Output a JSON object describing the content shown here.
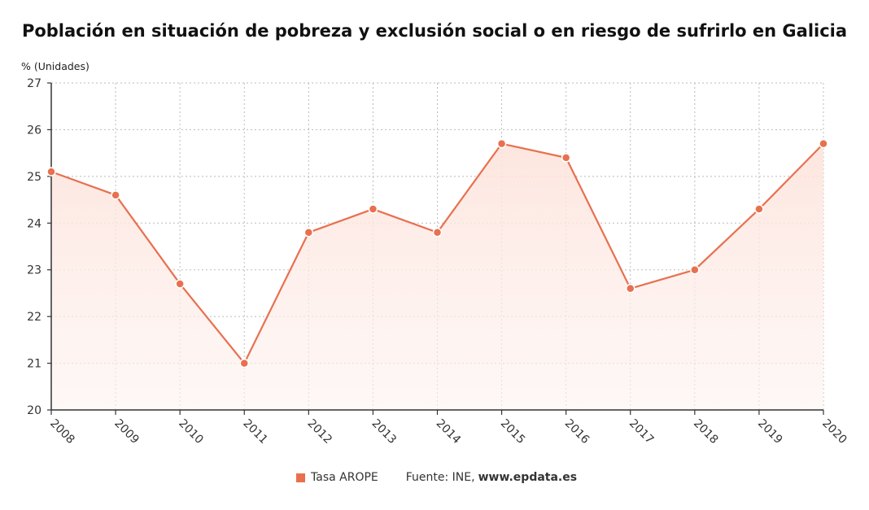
{
  "title": "Población en situación de pobreza y exclusión social o en riesgo de sufrirlo en Galicia",
  "unit_label": "% (Unidades)",
  "source": {
    "prefix": "Fuente: INE,",
    "domain": "www.epdata.es"
  },
  "colors": {
    "series": "#e8704f",
    "fill": "#fdeeea",
    "grid": "#bbbbbb"
  },
  "chart_data": {
    "type": "line",
    "title": "Población en situación de pobreza y exclusión social o en riesgo de sufrirlo en Galicia",
    "ylabel": "% (Unidades)",
    "xlabel": "",
    "x": [
      "2008",
      "2009",
      "2010",
      "2011",
      "2012",
      "2013",
      "2014",
      "2015",
      "2016",
      "2017",
      "2018",
      "2019",
      "2020"
    ],
    "series": [
      {
        "name": "Tasa AROPE",
        "values": [
          25.1,
          24.6,
          22.7,
          21.0,
          23.8,
          24.3,
          23.8,
          25.7,
          25.4,
          22.6,
          23.0,
          24.3,
          25.7
        ]
      }
    ],
    "ylim": [
      20,
      27
    ],
    "yticks": [
      20,
      21,
      22,
      23,
      24,
      25,
      26,
      27
    ],
    "grid": true,
    "legend": "bottom"
  }
}
